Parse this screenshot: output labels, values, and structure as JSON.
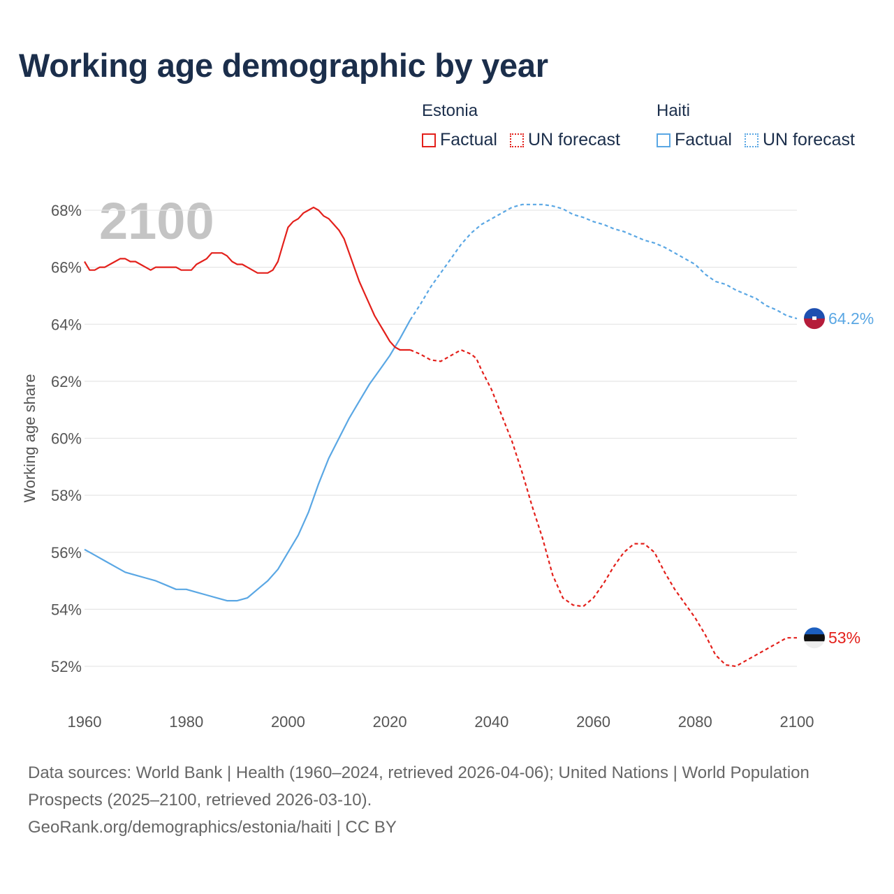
{
  "title": "Working age demographic by year",
  "legend": {
    "groups": [
      {
        "name": "Estonia",
        "color": "#e3201b",
        "items": [
          {
            "label": "Factual",
            "style": "solid"
          },
          {
            "label": "UN forecast",
            "style": "dotted"
          }
        ]
      },
      {
        "name": "Haiti",
        "color": "#5aa7e4",
        "items": [
          {
            "label": "Factual",
            "style": "solid"
          },
          {
            "label": "UN forecast",
            "style": "dotted"
          }
        ]
      }
    ]
  },
  "year_watermark": "2100",
  "end_labels": {
    "estonia": "53%",
    "haiti": "64.2%"
  },
  "footer": {
    "sources": "Data sources: World Bank | Health (1960–2024, retrieved 2026-04-06); United Nations | World Population Prospects (2025–2100, retrieved 2026-03-10).",
    "credit": "GeoRank.org/demographics/estonia/haiti | CC BY"
  },
  "chart_data": {
    "type": "line",
    "ylabel": "Working age share",
    "xlim": [
      1960,
      2100
    ],
    "ylim": [
      51,
      69
    ],
    "x_ticks": [
      "1960",
      "1980",
      "2000",
      "2020",
      "2040",
      "2060",
      "2080",
      "2100"
    ],
    "y_ticks": [
      "52%",
      "54%",
      "56%",
      "58%",
      "60%",
      "62%",
      "64%",
      "66%",
      "68%"
    ],
    "grid": true,
    "series": [
      {
        "name": "Estonia",
        "color": "#e3201b",
        "factual": [
          [
            1960,
            66.2
          ],
          [
            1961,
            65.9
          ],
          [
            1962,
            65.9
          ],
          [
            1963,
            66.0
          ],
          [
            1964,
            66.0
          ],
          [
            1965,
            66.1
          ],
          [
            1966,
            66.2
          ],
          [
            1967,
            66.3
          ],
          [
            1968,
            66.3
          ],
          [
            1969,
            66.2
          ],
          [
            1970,
            66.2
          ],
          [
            1971,
            66.1
          ],
          [
            1972,
            66.0
          ],
          [
            1973,
            65.9
          ],
          [
            1974,
            66.0
          ],
          [
            1975,
            66.0
          ],
          [
            1976,
            66.0
          ],
          [
            1977,
            66.0
          ],
          [
            1978,
            66.0
          ],
          [
            1979,
            65.9
          ],
          [
            1980,
            65.9
          ],
          [
            1981,
            65.9
          ],
          [
            1982,
            66.1
          ],
          [
            1983,
            66.2
          ],
          [
            1984,
            66.3
          ],
          [
            1985,
            66.5
          ],
          [
            1986,
            66.5
          ],
          [
            1987,
            66.5
          ],
          [
            1988,
            66.4
          ],
          [
            1989,
            66.2
          ],
          [
            1990,
            66.1
          ],
          [
            1991,
            66.1
          ],
          [
            1992,
            66.0
          ],
          [
            1993,
            65.9
          ],
          [
            1994,
            65.8
          ],
          [
            1995,
            65.8
          ],
          [
            1996,
            65.8
          ],
          [
            1997,
            65.9
          ],
          [
            1998,
            66.2
          ],
          [
            1999,
            66.8
          ],
          [
            2000,
            67.4
          ],
          [
            2001,
            67.6
          ],
          [
            2002,
            67.7
          ],
          [
            2003,
            67.9
          ],
          [
            2004,
            68.0
          ],
          [
            2005,
            68.1
          ],
          [
            2006,
            68.0
          ],
          [
            2007,
            67.8
          ],
          [
            2008,
            67.7
          ],
          [
            2009,
            67.5
          ],
          [
            2010,
            67.3
          ],
          [
            2011,
            67.0
          ],
          [
            2012,
            66.5
          ],
          [
            2013,
            66.0
          ],
          [
            2014,
            65.5
          ],
          [
            2015,
            65.1
          ],
          [
            2016,
            64.7
          ],
          [
            2017,
            64.3
          ],
          [
            2018,
            64.0
          ],
          [
            2019,
            63.7
          ],
          [
            2020,
            63.4
          ],
          [
            2021,
            63.2
          ],
          [
            2022,
            63.1
          ],
          [
            2023,
            63.1
          ],
          [
            2024,
            63.1
          ]
        ],
        "forecast": [
          [
            2024,
            63.1
          ],
          [
            2026,
            62.95
          ],
          [
            2028,
            62.75
          ],
          [
            2030,
            62.7
          ],
          [
            2032,
            62.9
          ],
          [
            2034,
            63.1
          ],
          [
            2036,
            62.95
          ],
          [
            2037,
            62.8
          ],
          [
            2038,
            62.4
          ],
          [
            2040,
            61.7
          ],
          [
            2042,
            60.8
          ],
          [
            2044,
            59.9
          ],
          [
            2046,
            58.8
          ],
          [
            2048,
            57.6
          ],
          [
            2050,
            56.5
          ],
          [
            2052,
            55.2
          ],
          [
            2054,
            54.4
          ],
          [
            2056,
            54.15
          ],
          [
            2058,
            54.1
          ],
          [
            2060,
            54.4
          ],
          [
            2062,
            54.9
          ],
          [
            2064,
            55.5
          ],
          [
            2066,
            56.0
          ],
          [
            2068,
            56.3
          ],
          [
            2070,
            56.3
          ],
          [
            2072,
            56.0
          ],
          [
            2074,
            55.3
          ],
          [
            2076,
            54.7
          ],
          [
            2078,
            54.2
          ],
          [
            2080,
            53.7
          ],
          [
            2082,
            53.1
          ],
          [
            2084,
            52.4
          ],
          [
            2086,
            52.05
          ],
          [
            2088,
            52.0
          ],
          [
            2090,
            52.2
          ],
          [
            2092,
            52.4
          ],
          [
            2094,
            52.6
          ],
          [
            2096,
            52.8
          ],
          [
            2098,
            53.0
          ],
          [
            2100,
            53.0
          ]
        ]
      },
      {
        "name": "Haiti",
        "color": "#5aa7e4",
        "factual": [
          [
            1960,
            56.1
          ],
          [
            1962,
            55.9
          ],
          [
            1964,
            55.7
          ],
          [
            1966,
            55.5
          ],
          [
            1968,
            55.3
          ],
          [
            1970,
            55.2
          ],
          [
            1972,
            55.1
          ],
          [
            1974,
            55.0
          ],
          [
            1976,
            54.85
          ],
          [
            1978,
            54.7
          ],
          [
            1980,
            54.7
          ],
          [
            1982,
            54.6
          ],
          [
            1984,
            54.5
          ],
          [
            1986,
            54.4
          ],
          [
            1988,
            54.3
          ],
          [
            1990,
            54.3
          ],
          [
            1992,
            54.4
          ],
          [
            1994,
            54.7
          ],
          [
            1996,
            55.0
          ],
          [
            1998,
            55.4
          ],
          [
            2000,
            56.0
          ],
          [
            2002,
            56.6
          ],
          [
            2004,
            57.4
          ],
          [
            2006,
            58.4
          ],
          [
            2008,
            59.3
          ],
          [
            2010,
            60.0
          ],
          [
            2012,
            60.7
          ],
          [
            2014,
            61.3
          ],
          [
            2016,
            61.9
          ],
          [
            2018,
            62.4
          ],
          [
            2020,
            62.9
          ],
          [
            2022,
            63.5
          ],
          [
            2024,
            64.15
          ]
        ],
        "forecast": [
          [
            2024,
            64.15
          ],
          [
            2026,
            64.7
          ],
          [
            2028,
            65.3
          ],
          [
            2030,
            65.8
          ],
          [
            2032,
            66.3
          ],
          [
            2034,
            66.8
          ],
          [
            2036,
            67.2
          ],
          [
            2038,
            67.5
          ],
          [
            2040,
            67.7
          ],
          [
            2042,
            67.9
          ],
          [
            2044,
            68.1
          ],
          [
            2046,
            68.2
          ],
          [
            2048,
            68.2
          ],
          [
            2050,
            68.2
          ],
          [
            2052,
            68.15
          ],
          [
            2054,
            68.05
          ],
          [
            2056,
            67.85
          ],
          [
            2058,
            67.75
          ],
          [
            2060,
            67.6
          ],
          [
            2062,
            67.5
          ],
          [
            2064,
            67.35
          ],
          [
            2066,
            67.25
          ],
          [
            2068,
            67.1
          ],
          [
            2070,
            66.95
          ],
          [
            2072,
            66.85
          ],
          [
            2074,
            66.7
          ],
          [
            2076,
            66.5
          ],
          [
            2078,
            66.3
          ],
          [
            2080,
            66.1
          ],
          [
            2082,
            65.75
          ],
          [
            2084,
            65.5
          ],
          [
            2086,
            65.4
          ],
          [
            2088,
            65.2
          ],
          [
            2090,
            65.05
          ],
          [
            2092,
            64.9
          ],
          [
            2094,
            64.65
          ],
          [
            2096,
            64.5
          ],
          [
            2098,
            64.3
          ],
          [
            2100,
            64.2
          ]
        ]
      }
    ]
  }
}
